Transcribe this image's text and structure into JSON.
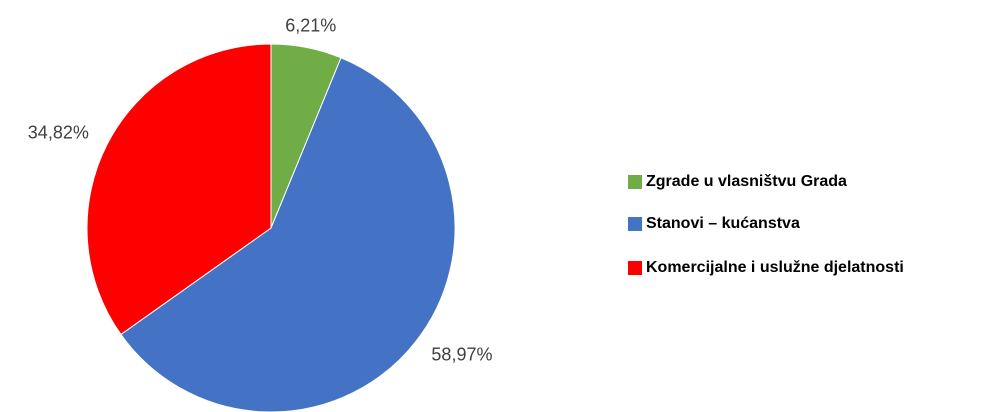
{
  "chart_data": {
    "type": "pie",
    "categories": [
      "Zgrade u vlasništvu Grada",
      "Stanovi – kućanstva",
      "Komercijalne i uslužne djelatnosti"
    ],
    "values": [
      6.21,
      58.97,
      34.82
    ],
    "value_labels": [
      "6,21%",
      "58,97%",
      "34,82%"
    ],
    "colors": [
      "#70ad47",
      "#4472c4",
      "#ff0000"
    ],
    "legend": "right"
  }
}
